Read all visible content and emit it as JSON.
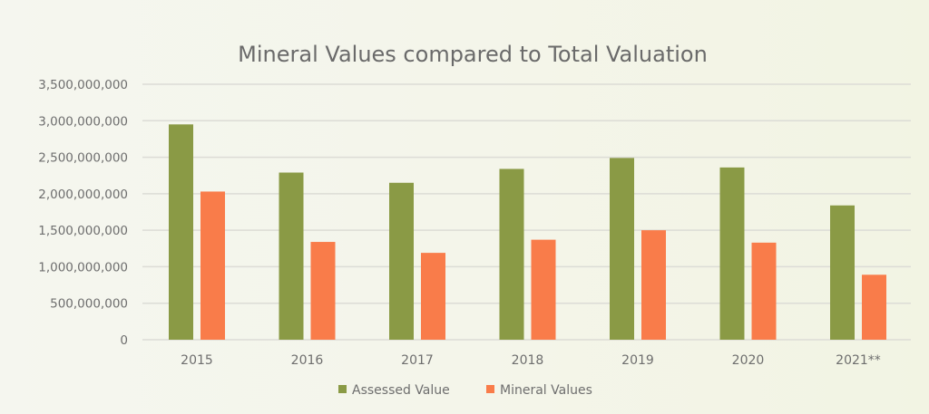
{
  "chart_data": {
    "type": "bar",
    "title": "Mineral Values compared to Total Valuation",
    "xlabel": "",
    "ylabel": "",
    "categories": [
      "2015",
      "2016",
      "2017",
      "2018",
      "2019",
      "2020",
      "2021**"
    ],
    "series": [
      {
        "name": "Assessed Value",
        "color": "#8a9a45",
        "values": [
          2950000000,
          2290000000,
          2150000000,
          2340000000,
          2490000000,
          2360000000,
          1840000000
        ]
      },
      {
        "name": "Mineral Values",
        "color": "#f97c4a",
        "values": [
          2030000000,
          1340000000,
          1190000000,
          1370000000,
          1500000000,
          1330000000,
          890000000
        ]
      }
    ],
    "ylim": [
      0,
      3500000000
    ],
    "yticks": [
      0,
      500000000,
      1000000000,
      1500000000,
      2000000000,
      2500000000,
      3000000000,
      3500000000
    ],
    "ytick_labels": [
      "0",
      "500,000,000",
      "1,000,000,000",
      "1,500,000,000",
      "2,000,000,000",
      "2,500,000,000",
      "3,000,000,000",
      "3,500,000,000"
    ],
    "grid": true,
    "legend_position": "bottom"
  }
}
